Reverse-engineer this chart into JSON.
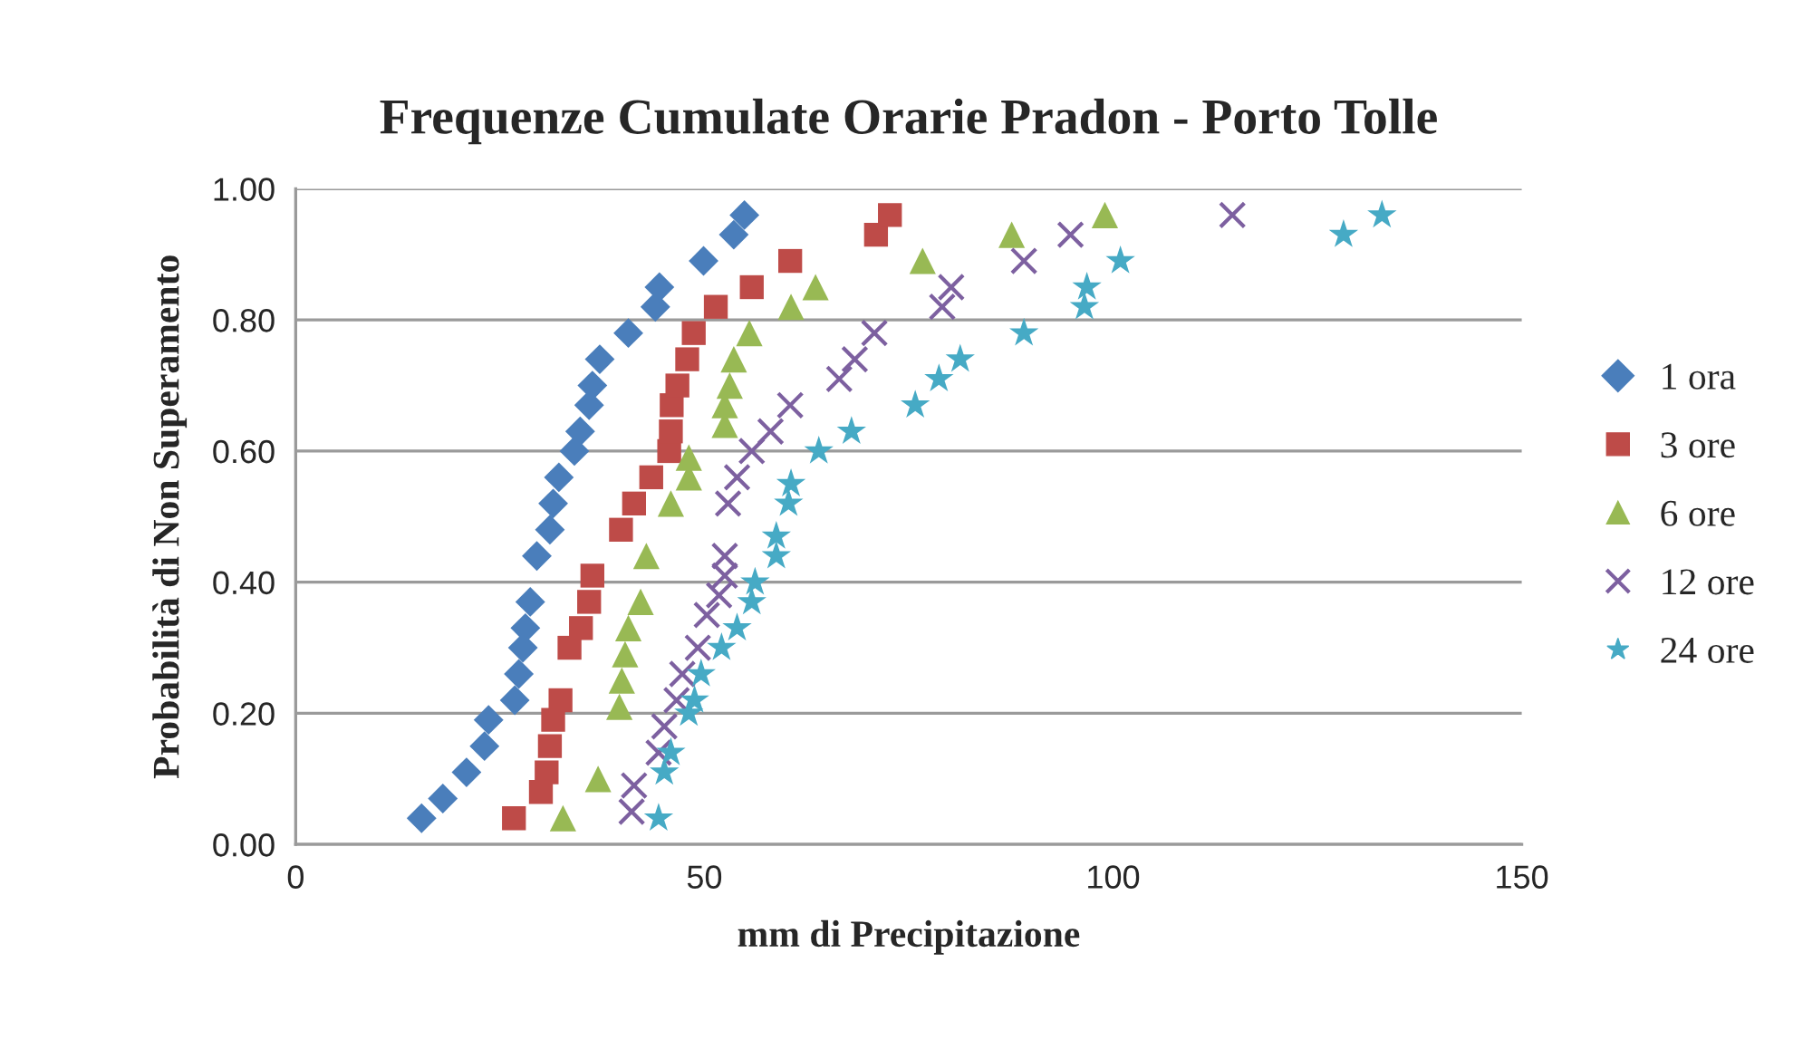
{
  "chart_data": {
    "type": "scatter",
    "title": "Frequenze Cumulate Orarie Pradon - Porto Tolle",
    "xlabel": "mm di Precipitazione",
    "ylabel": "Probabilità di Non Superamento",
    "xlim": [
      0,
      150
    ],
    "xticks": [
      0,
      50,
      100,
      150
    ],
    "ylim": [
      0,
      1
    ],
    "yticks": [
      {
        "value": 0,
        "label": "0.00"
      },
      {
        "value": 0.2,
        "label": "0.20"
      },
      {
        "value": 0.4,
        "label": "0.40"
      },
      {
        "value": 0.6,
        "label": "0.60"
      },
      {
        "value": 0.8,
        "label": "0.80"
      },
      {
        "value": 1,
        "label": "1.00"
      }
    ],
    "grid": "y",
    "legend": "right",
    "series": [
      {
        "name": "1 ora",
        "color": "#4a7ebb",
        "marker": "diamond",
        "x": [
          15.4,
          18.0,
          20.9,
          23.1,
          23.6,
          26.8,
          27.3,
          27.8,
          28.1,
          28.7,
          29.5,
          31.1,
          31.5,
          32.2,
          34.1,
          34.8,
          35.9,
          36.3,
          37.2,
          40.7,
          44.0,
          44.5,
          49.9,
          53.6,
          54.9
        ],
        "values": [
          0.04,
          0.07,
          0.11,
          0.15,
          0.19,
          0.22,
          0.26,
          0.3,
          0.33,
          0.37,
          0.44,
          0.48,
          0.52,
          0.56,
          0.6,
          0.63,
          0.67,
          0.7,
          0.74,
          0.78,
          0.82,
          0.85,
          0.89,
          0.93,
          0.96
        ]
      },
      {
        "name": "3 ore",
        "color": "#be4b48",
        "marker": "square",
        "x": [
          26.7,
          30.0,
          30.7,
          31.1,
          31.5,
          32.4,
          33.5,
          34.9,
          35.9,
          36.3,
          39.8,
          41.4,
          43.5,
          45.7,
          45.9,
          46.0,
          46.7,
          47.9,
          48.7,
          51.4,
          55.8,
          60.5,
          71.0,
          72.7
        ],
        "values": [
          0.04,
          0.08,
          0.11,
          0.15,
          0.19,
          0.22,
          0.3,
          0.33,
          0.37,
          0.41,
          0.48,
          0.52,
          0.56,
          0.6,
          0.63,
          0.67,
          0.7,
          0.74,
          0.78,
          0.82,
          0.85,
          0.89,
          0.93,
          0.96
        ]
      },
      {
        "name": "6 ore",
        "color": "#98b954",
        "marker": "triangle",
        "x": [
          32.7,
          37.0,
          39.6,
          39.9,
          40.3,
          40.7,
          42.2,
          42.9,
          45.9,
          48.1,
          48.1,
          52.5,
          52.5,
          53.1,
          53.6,
          55.5,
          60.6,
          63.6,
          76.7,
          87.6,
          99.0
        ],
        "values": [
          0.04,
          0.1,
          0.21,
          0.25,
          0.29,
          0.33,
          0.37,
          0.44,
          0.52,
          0.56,
          0.59,
          0.64,
          0.67,
          0.7,
          0.74,
          0.78,
          0.82,
          0.85,
          0.89,
          0.93,
          0.96
        ]
      },
      {
        "name": "12 ore",
        "color": "#7d60a0",
        "marker": "cross",
        "x": [
          41.1,
          41.4,
          44.4,
          45.1,
          46.6,
          47.3,
          49.2,
          50.3,
          51.8,
          52.5,
          52.5,
          52.9,
          54.0,
          55.8,
          58.1,
          60.5,
          66.5,
          68.4,
          70.8,
          79.1,
          80.2,
          89.1,
          94.8,
          114.6
        ],
        "values": [
          0.05,
          0.09,
          0.14,
          0.18,
          0.22,
          0.26,
          0.3,
          0.35,
          0.38,
          0.41,
          0.44,
          0.52,
          0.56,
          0.6,
          0.63,
          0.67,
          0.71,
          0.74,
          0.78,
          0.82,
          0.85,
          0.89,
          0.93,
          0.96
        ]
      },
      {
        "name": "24 ore",
        "color": "#46aac5",
        "marker": "star",
        "x": [
          44.4,
          45.1,
          45.9,
          48.1,
          48.8,
          49.6,
          52.1,
          54.0,
          55.8,
          56.2,
          58.8,
          58.8,
          60.3,
          60.6,
          64.0,
          68.0,
          75.8,
          78.7,
          81.3,
          89.1,
          96.5,
          96.8,
          100.9,
          128.2,
          132.9
        ],
        "values": [
          0.04,
          0.11,
          0.14,
          0.2,
          0.22,
          0.26,
          0.3,
          0.33,
          0.37,
          0.4,
          0.44,
          0.47,
          0.52,
          0.55,
          0.6,
          0.63,
          0.67,
          0.71,
          0.74,
          0.78,
          0.82,
          0.85,
          0.89,
          0.93,
          0.96
        ]
      }
    ]
  }
}
